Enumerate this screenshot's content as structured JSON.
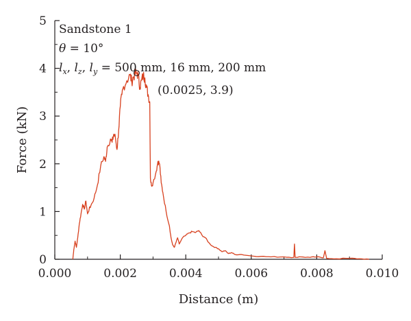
{
  "chart_data": {
    "type": "line",
    "title": "",
    "xlabel": "Distance (m)",
    "ylabel": "Force (kN)",
    "xlim": [
      0.0,
      0.01
    ],
    "ylim": [
      0,
      5
    ],
    "x_tick_labels": [
      "0.000",
      "0.002",
      "0.004",
      "0.006",
      "0.008",
      "0.010"
    ],
    "y_tick_labels": [
      "0",
      "1",
      "2",
      "3",
      "4",
      "5"
    ],
    "grid": false,
    "legend": "none",
    "line_color": "#d7401e",
    "annotations": {
      "sample": "Sandstone 1",
      "theta_symbol": "θ",
      "theta_value": " = 10°",
      "dims_l": "l",
      "dims_x": "x",
      "dims_z": "z",
      "dims_y": "y",
      "dims_sep": ", ",
      "dims_values": " = 500 mm, 16 mm, 200 mm",
      "peak_label": "(0.0025, 3.9)"
    },
    "peak_point": {
      "x": 0.0025,
      "y": 3.9
    },
    "series": [
      {
        "points": [
          [
            0.00055,
            0.0
          ],
          [
            0.00058,
            0.2
          ],
          [
            0.00062,
            0.38
          ],
          [
            0.00066,
            0.25
          ],
          [
            0.0007,
            0.45
          ],
          [
            0.00075,
            0.75
          ],
          [
            0.0008,
            0.95
          ],
          [
            0.00085,
            1.15
          ],
          [
            0.0009,
            1.05
          ],
          [
            0.00095,
            1.22
          ],
          [
            0.001,
            0.95
          ],
          [
            0.00105,
            1.05
          ],
          [
            0.0011,
            1.12
          ],
          [
            0.0012,
            1.28
          ],
          [
            0.0013,
            1.55
          ],
          [
            0.0014,
            1.95
          ],
          [
            0.0015,
            2.15
          ],
          [
            0.00155,
            2.05
          ],
          [
            0.0016,
            2.35
          ],
          [
            0.0017,
            2.52
          ],
          [
            0.00175,
            2.45
          ],
          [
            0.0018,
            2.62
          ],
          [
            0.00185,
            2.55
          ],
          [
            0.0019,
            2.3
          ],
          [
            0.00195,
            2.7
          ],
          [
            0.002,
            3.2
          ],
          [
            0.00205,
            3.45
          ],
          [
            0.0021,
            3.62
          ],
          [
            0.0022,
            3.74
          ],
          [
            0.0023,
            3.86
          ],
          [
            0.00235,
            3.72
          ],
          [
            0.0024,
            3.82
          ],
          [
            0.00245,
            3.88
          ],
          [
            0.0025,
            3.9
          ],
          [
            0.00255,
            3.85
          ],
          [
            0.0026,
            3.6
          ],
          [
            0.00265,
            3.75
          ],
          [
            0.0027,
            3.85
          ],
          [
            0.00275,
            3.8
          ],
          [
            0.0028,
            3.6
          ],
          [
            0.00285,
            3.45
          ],
          [
            0.0029,
            3.3
          ],
          [
            0.00292,
            1.7
          ],
          [
            0.00295,
            1.55
          ],
          [
            0.003,
            1.6
          ],
          [
            0.0031,
            1.85
          ],
          [
            0.00315,
            2.05
          ],
          [
            0.0032,
            2.0
          ],
          [
            0.00325,
            1.6
          ],
          [
            0.0033,
            1.4
          ],
          [
            0.0034,
            1.0
          ],
          [
            0.0035,
            0.7
          ],
          [
            0.00355,
            0.45
          ],
          [
            0.0036,
            0.3
          ],
          [
            0.00365,
            0.25
          ],
          [
            0.0037,
            0.35
          ],
          [
            0.00375,
            0.45
          ],
          [
            0.0038,
            0.32
          ],
          [
            0.0039,
            0.45
          ],
          [
            0.004,
            0.5
          ],
          [
            0.0041,
            0.55
          ],
          [
            0.0042,
            0.58
          ],
          [
            0.0043,
            0.56
          ],
          [
            0.0044,
            0.6
          ],
          [
            0.0045,
            0.5
          ],
          [
            0.0046,
            0.45
          ],
          [
            0.0047,
            0.35
          ],
          [
            0.0048,
            0.28
          ],
          [
            0.0049,
            0.25
          ],
          [
            0.005,
            0.22
          ],
          [
            0.0051,
            0.16
          ],
          [
            0.0052,
            0.18
          ],
          [
            0.0053,
            0.12
          ],
          [
            0.0054,
            0.14
          ],
          [
            0.0055,
            0.1
          ],
          [
            0.0057,
            0.1
          ],
          [
            0.006,
            0.07
          ],
          [
            0.0063,
            0.06
          ],
          [
            0.0066,
            0.05
          ],
          [
            0.007,
            0.05
          ],
          [
            0.0073,
            0.04
          ],
          [
            0.00732,
            0.32
          ],
          [
            0.00734,
            0.04
          ],
          [
            0.0075,
            0.05
          ],
          [
            0.0078,
            0.04
          ],
          [
            0.008,
            0.05
          ],
          [
            0.0082,
            0.03
          ],
          [
            0.00825,
            0.18
          ],
          [
            0.0083,
            0.02
          ],
          [
            0.0086,
            0.01
          ],
          [
            0.009,
            0.02
          ],
          [
            0.0093,
            0.01
          ],
          [
            0.0096,
            0.0
          ]
        ]
      }
    ]
  }
}
